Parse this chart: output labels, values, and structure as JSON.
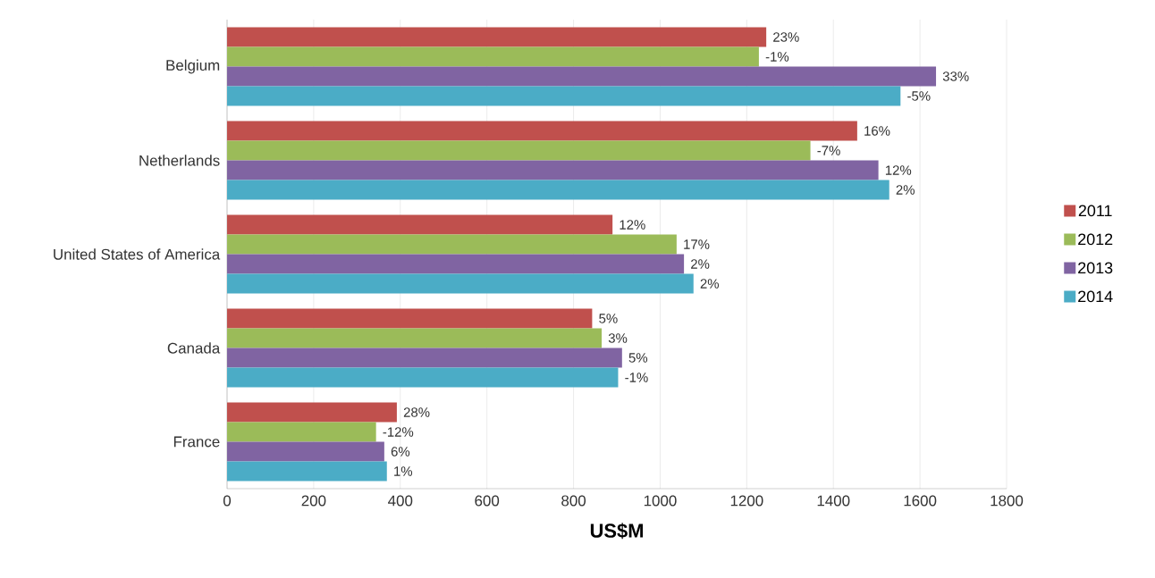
{
  "chart_data": {
    "type": "bar",
    "orientation": "horizontal",
    "xlabel": "US$M",
    "categories": [
      "Belgium",
      "Netherlands",
      "United States of America",
      "Canada",
      "France"
    ],
    "series": [
      {
        "name": "2011",
        "color": "#c0504d",
        "values": [
          1245,
          1455,
          890,
          843,
          392
        ]
      },
      {
        "name": "2012",
        "color": "#9bbb59",
        "values": [
          1228,
          1347,
          1038,
          865,
          344
        ]
      },
      {
        "name": "2013",
        "color": "#8064a2",
        "values": [
          1637,
          1504,
          1055,
          912,
          363
        ]
      },
      {
        "name": "2014",
        "color": "#4bacc6",
        "values": [
          1555,
          1529,
          1077,
          903,
          369
        ]
      }
    ],
    "annotations": [
      {
        "text": "23%",
        "x": 1245,
        "y": "Belgium"
      },
      {
        "text": "-1%",
        "x": 1228,
        "y": "Belgium"
      },
      {
        "text": "33%",
        "x": 1637,
        "y": "Belgium"
      },
      {
        "text": "-5%",
        "x": 1555,
        "y": "Belgium"
      },
      {
        "text": "16%",
        "x": 1455,
        "y": "Netherlands"
      },
      {
        "text": "-7%",
        "x": 1347,
        "y": "Netherlands"
      },
      {
        "text": "12%",
        "x": 1504,
        "y": "Netherlands"
      },
      "2%",
      {
        "text": "12%",
        "x": 890,
        "y": "United States of America"
      },
      {
        "text": "17%",
        "x": 1038,
        "y": "United States of America"
      },
      {
        "text": "2%",
        "x": 1055,
        "y": "United States of America"
      },
      "2%",
      {
        "text": "5%",
        "x": 843,
        "y": "Canada"
      },
      {
        "text": "3%",
        "x": 865,
        "y": "Canada"
      },
      {
        "text": "5%",
        "x": 912,
        "y": "Canada"
      },
      {
        "text": "-1%",
        "x": 903,
        "y": "Canada"
      },
      "28%",
      {
        "text": "-12%",
        "x": 344,
        "y": "France"
      },
      {
        "text": "6%",
        "x": 363,
        "y": "France"
      },
      {
        "text": "1%",
        "x": 369,
        "y": "France"
      }
    ],
    "xlim": [
      0,
      1800
    ],
    "xticks": [
      0,
      200,
      400,
      600,
      800,
      1000,
      1200,
      1400,
      1600,
      1800
    ],
    "grid": "x",
    "legend": "right"
  }
}
